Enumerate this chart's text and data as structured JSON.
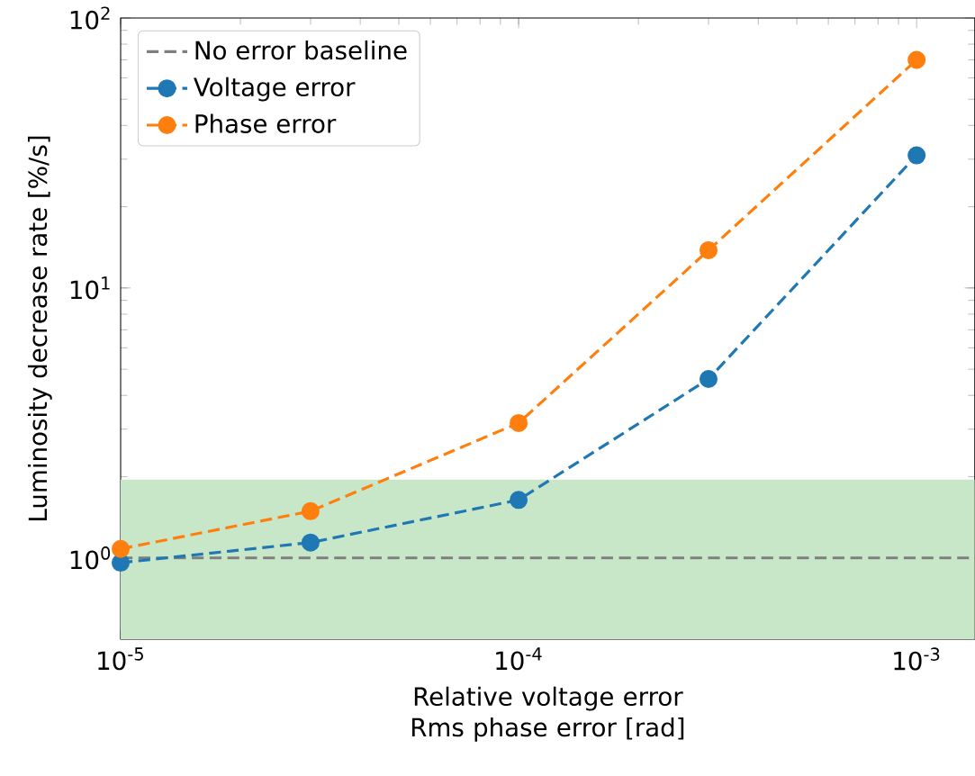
{
  "chart_data": {
    "type": "line",
    "xlabel": "Relative voltage error Rms phase error [rad]",
    "ylabel": "Luminosity decrease rate [%/s]",
    "log": "xy",
    "xlim": [
      1e-05,
      0.0014
    ],
    "ylim": [
      0.5,
      100
    ],
    "xticks": [
      {
        "value": 1e-05,
        "label": "10$^{-5}$"
      },
      {
        "value": 0.0001,
        "label": "10$^{-4}$"
      },
      {
        "value": 0.001,
        "label": "10$^{-3}$"
      }
    ],
    "yticks": [
      {
        "value": 1,
        "label": "10$^{0}$"
      },
      {
        "value": 10,
        "label": "10$^{1}$"
      },
      {
        "value": 100,
        "label": "10$^{2}$"
      }
    ],
    "x": [
      1e-05,
      3e-05,
      0.0001,
      0.0003,
      0.001
    ],
    "series": [
      {
        "name": "No error baseline",
        "color": "#7f7f7f",
        "x": [
          1e-05,
          0.0014
        ],
        "values": [
          1,
          1
        ],
        "marker": "none",
        "line_style": "dashed"
      },
      {
        "name": "Voltage error",
        "color": "#1f77b4",
        "values": [
          0.96,
          1.14,
          1.64,
          4.6,
          31
        ],
        "marker": "circle",
        "line_style": "dashed"
      },
      {
        "name": "Phase error",
        "color": "#ff7f0e",
        "values": [
          1.08,
          1.49,
          3.16,
          13.8,
          70
        ],
        "marker": "circle",
        "line_style": "dashed"
      }
    ],
    "bands": [
      {
        "axis": "y",
        "from": 0.5,
        "to": 1.95,
        "color": "#c8e6c8"
      }
    ],
    "legend": "top left",
    "grid": false
  }
}
